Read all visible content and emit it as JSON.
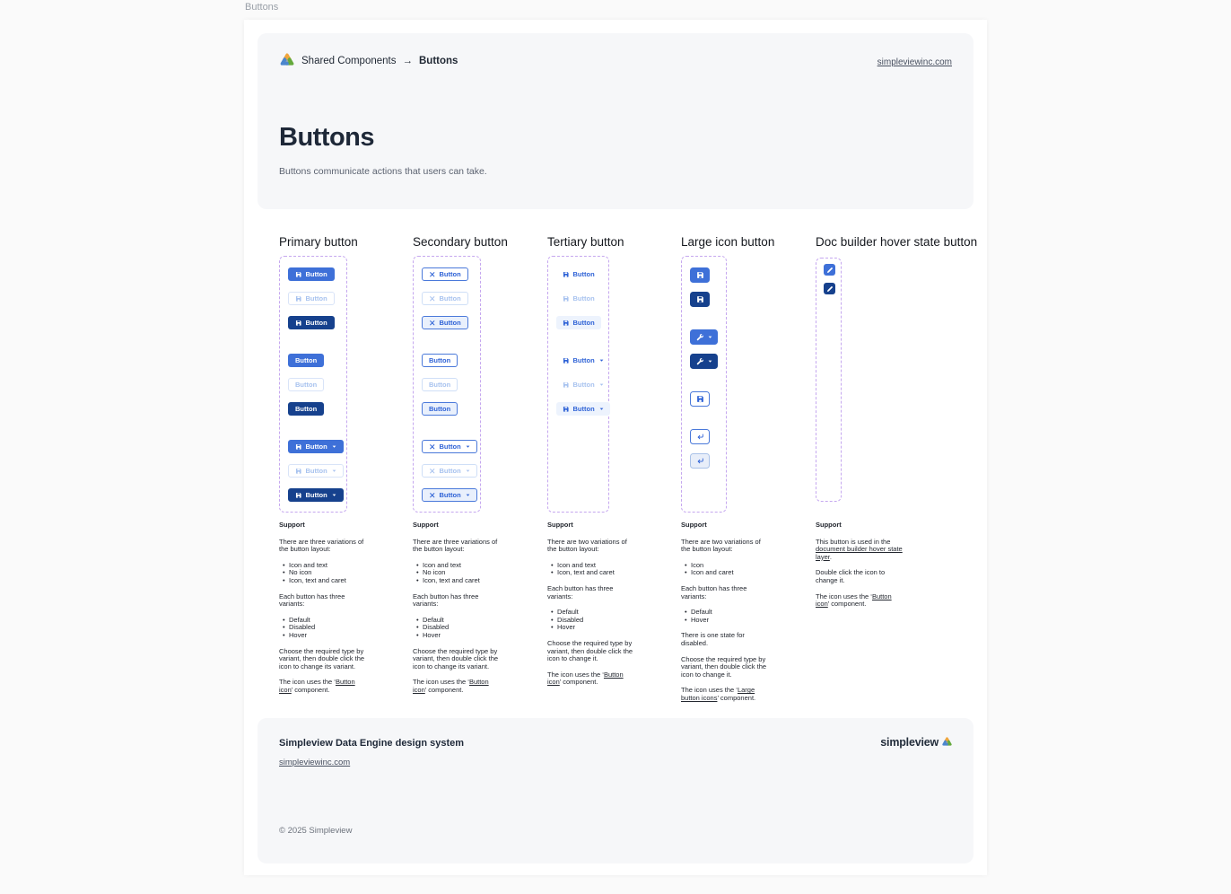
{
  "page": {
    "tab_label": "Buttons"
  },
  "colors": {
    "primary": "#3e70d8",
    "primary_hover": "#16418d",
    "disabled_content": "#a7c2ef",
    "disabled_border": "#d9e4f8",
    "secondary_border": "#4a79da",
    "secondary_text": "#2e62d6",
    "secondary_hover_bg": "#e9f0fc",
    "tertiary_hover_bg": "#edf3fd",
    "dashed_border": "#c5a7ef",
    "card_bg": "#f6f7f9",
    "heading": "#1e2838",
    "text_muted": "#5b6270",
    "link": "#474f5f",
    "brand_yellow": "#f0a63c",
    "brand_blue": "#4b86cd",
    "brand_green": "#64a93c"
  },
  "header": {
    "breadcrumb": {
      "root": "Shared Components",
      "arrow": "→",
      "current": "Buttons"
    },
    "site_link": "simpleviewinc.com",
    "title": "Buttons",
    "subtitle": "Buttons communicate actions that users can take."
  },
  "support_label": "Support",
  "columns": [
    {
      "id": "primary",
      "title": "Primary button",
      "groups": [
        [
          {
            "style": "primary",
            "state": "default",
            "icon": "save",
            "label": "Button"
          },
          {
            "style": "primary",
            "state": "disabled",
            "icon": "save",
            "label": "Button"
          },
          {
            "style": "primary",
            "state": "hover",
            "icon": "save",
            "label": "Button"
          }
        ],
        [
          {
            "style": "primary",
            "state": "default",
            "label": "Button"
          },
          {
            "style": "primary",
            "state": "disabled",
            "label": "Button"
          },
          {
            "style": "primary",
            "state": "hover",
            "label": "Button"
          }
        ],
        [
          {
            "style": "primary",
            "state": "default",
            "icon": "save",
            "label": "Button",
            "caret": true
          },
          {
            "style": "primary",
            "state": "disabled",
            "icon": "save",
            "label": "Button",
            "caret": true
          },
          {
            "style": "primary",
            "state": "hover",
            "icon": "save",
            "label": "Button",
            "caret": true
          }
        ]
      ],
      "support": [
        {
          "p": [
            {
              "text": "There are three variations of the button layout:"
            }
          ]
        },
        {
          "ul": [
            "Icon and text",
            "No icon",
            "Icon, text and caret"
          ]
        },
        {
          "p": [
            {
              "text": "Each button has three variants:"
            }
          ]
        },
        {
          "ul": [
            "Default",
            "Disabled",
            "Hover"
          ]
        },
        {
          "p": [
            {
              "text": "Choose the required type by variant, then double click the icon to change its variant."
            }
          ]
        },
        {
          "p": [
            {
              "text": "The icon uses the ‘"
            },
            {
              "link": "Button icon"
            },
            {
              "text": "’ component."
            }
          ]
        }
      ]
    },
    {
      "id": "secondary",
      "title": "Secondary button",
      "groups": [
        [
          {
            "style": "secondary",
            "state": "default",
            "icon": "close",
            "label": "Button"
          },
          {
            "style": "secondary",
            "state": "disabled",
            "icon": "close",
            "label": "Button"
          },
          {
            "style": "secondary",
            "state": "hover",
            "icon": "close",
            "label": "Button"
          }
        ],
        [
          {
            "style": "secondary",
            "state": "default",
            "label": "Button"
          },
          {
            "style": "secondary",
            "state": "disabled",
            "label": "Button"
          },
          {
            "style": "secondary",
            "state": "hover",
            "label": "Button"
          }
        ],
        [
          {
            "style": "secondary",
            "state": "default",
            "icon": "close",
            "label": "Button",
            "caret": true
          },
          {
            "style": "secondary",
            "state": "disabled",
            "icon": "close",
            "label": "Button",
            "caret": true
          },
          {
            "style": "secondary",
            "state": "hover",
            "icon": "close",
            "label": "Button",
            "caret": true
          }
        ]
      ],
      "support": [
        {
          "p": [
            {
              "text": "There are three variations of the button layout:"
            }
          ]
        },
        {
          "ul": [
            "Icon and text",
            "No icon",
            "Icon, text and caret"
          ]
        },
        {
          "p": [
            {
              "text": "Each button has three variants:"
            }
          ]
        },
        {
          "ul": [
            "Default",
            "Disabled",
            "Hover"
          ]
        },
        {
          "p": [
            {
              "text": "Choose the required type by variant, then double click the icon to change its variant."
            }
          ]
        },
        {
          "p": [
            {
              "text": "The icon uses the ‘"
            },
            {
              "link": "Button icon"
            },
            {
              "text": "’ component."
            }
          ]
        }
      ]
    },
    {
      "id": "tertiary",
      "title": "Tertiary button",
      "groups": [
        [
          {
            "style": "tertiary",
            "state": "default",
            "icon": "save",
            "label": "Button"
          },
          {
            "style": "tertiary",
            "state": "disabled",
            "icon": "save",
            "label": "Button"
          },
          {
            "style": "tertiary",
            "state": "hover",
            "icon": "save",
            "label": "Button"
          }
        ],
        [
          {
            "style": "tertiary",
            "state": "default",
            "icon": "save",
            "label": "Button",
            "caret": true
          },
          {
            "style": "tertiary",
            "state": "disabled",
            "icon": "save",
            "label": "Button",
            "caret": true
          },
          {
            "style": "tertiary",
            "state": "hover",
            "icon": "save",
            "label": "Button",
            "caret": true
          }
        ]
      ],
      "support": [
        {
          "p": [
            {
              "text": "There are two variations of the button layout:"
            }
          ]
        },
        {
          "ul": [
            "Icon and text",
            "Icon, text and caret"
          ]
        },
        {
          "p": [
            {
              "text": "Each button has three variants:"
            }
          ]
        },
        {
          "ul": [
            "Default",
            "Disabled",
            "Hover"
          ]
        },
        {
          "p": [
            {
              "text": "Choose the required type by variant, then double click the icon to change it."
            }
          ]
        },
        {
          "p": [
            {
              "text": "The icon uses the ‘"
            },
            {
              "link": "Button icon"
            },
            {
              "text": "’ component."
            }
          ]
        }
      ]
    },
    {
      "id": "large-icon",
      "title": "Large icon button",
      "groups": [
        [
          {
            "style": "primary",
            "state": "default",
            "icon": "save"
          },
          {
            "style": "primary",
            "state": "hover",
            "icon": "save"
          }
        ],
        [
          {
            "style": "primary",
            "state": "default",
            "icon": "wrench",
            "caret": true
          },
          {
            "style": "primary",
            "state": "hover",
            "icon": "wrench",
            "caret": true
          }
        ],
        [
          {
            "style": "secondary",
            "state": "default",
            "icon": "save"
          }
        ],
        [
          {
            "style": "secondary",
            "state": "default",
            "icon": "return"
          },
          {
            "style": "secondary",
            "state": "hover",
            "icon": "return"
          }
        ]
      ],
      "support": [
        {
          "p": [
            {
              "text": "There are two variations of the button layout:"
            }
          ]
        },
        {
          "ul": [
            "Icon",
            "Icon and caret"
          ]
        },
        {
          "p": [
            {
              "text": "Each button has three variants:"
            }
          ]
        },
        {
          "ul": [
            "Default",
            "Hover"
          ]
        },
        {
          "p": [
            {
              "text": "There is one state for disabled."
            }
          ]
        },
        {
          "p": [
            {
              "text": "Choose the required type by variant, then double click the icon to change it."
            }
          ]
        },
        {
          "p": [
            {
              "text": "The icon uses the ‘"
            },
            {
              "link": "Large button icons"
            },
            {
              "text": "’ component."
            }
          ]
        }
      ]
    },
    {
      "id": "doc-builder",
      "title": "Doc builder hover state button",
      "groups": [
        [
          {
            "style": "primary",
            "state": "default",
            "icon": "pencil"
          },
          {
            "style": "primary",
            "state": "hover",
            "icon": "pencil"
          }
        ]
      ],
      "support": [
        {
          "p": [
            {
              "text": "This button is used in the "
            },
            {
              "link": "document builder hover state layer"
            },
            {
              "text": "."
            }
          ]
        },
        {
          "p": [
            {
              "text": "Double click the icon to change it."
            }
          ]
        },
        {
          "p": [
            {
              "text": "The icon uses the ‘"
            },
            {
              "link": "Button icon"
            },
            {
              "text": "’ component."
            }
          ]
        }
      ]
    }
  ],
  "footer": {
    "title": "Simpleview Data Engine design system",
    "link": "simpleviewinc.com",
    "brand": "simpleview",
    "copyright": "© 2025 Simpleview"
  }
}
